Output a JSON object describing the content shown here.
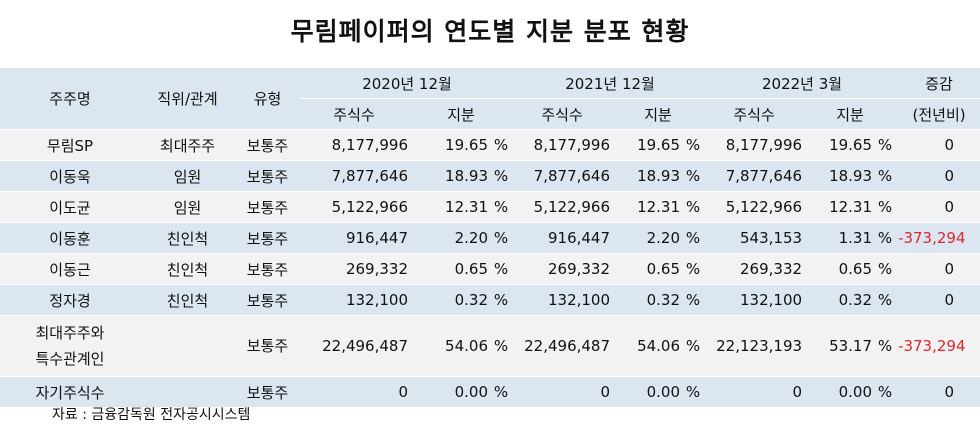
{
  "title": "무림페이퍼의 연도별 지분 분포 현황",
  "header": {
    "holder": "주주명",
    "position": "직위/관계",
    "type": "유형",
    "period1": "2020년 12월",
    "period2": "2021년 12월",
    "period3": "2022년 3월",
    "change_top": "증감",
    "change_bottom": "(전년비)",
    "shares": "주식수",
    "stake": "지분"
  },
  "percent_sign": "%",
  "rows": [
    {
      "name": "무림SP",
      "rel": "최대주주",
      "type": "보통주",
      "s1": "8,177,996",
      "p1": "19.65",
      "s2": "8,177,996",
      "p2": "19.65",
      "s3": "8,177,996",
      "p3": "19.65",
      "chg": "0"
    },
    {
      "name": "이동욱",
      "rel": "임원",
      "type": "보통주",
      "s1": "7,877,646",
      "p1": "18.93",
      "s2": "7,877,646",
      "p2": "18.93",
      "s3": "7,877,646",
      "p3": "18.93",
      "chg": "0"
    },
    {
      "name": "이도균",
      "rel": "임원",
      "type": "보통주",
      "s1": "5,122,966",
      "p1": "12.31",
      "s2": "5,122,966",
      "p2": "12.31",
      "s3": "5,122,966",
      "p3": "12.31",
      "chg": "0"
    },
    {
      "name": "이동훈",
      "rel": "친인척",
      "type": "보통주",
      "s1": "916,447",
      "p1": "2.20",
      "s2": "916,447",
      "p2": "2.20",
      "s3": "543,153",
      "p3": "1.31",
      "chg": "-373,294"
    },
    {
      "name": "이동근",
      "rel": "친인척",
      "type": "보통주",
      "s1": "269,332",
      "p1": "0.65",
      "s2": "269,332",
      "p2": "0.65",
      "s3": "269,332",
      "p3": "0.65",
      "chg": "0"
    },
    {
      "name": "정자경",
      "rel": "친인척",
      "type": "보통주",
      "s1": "132,100",
      "p1": "0.32",
      "s2": "132,100",
      "p2": "0.32",
      "s3": "132,100",
      "p3": "0.32",
      "chg": "0"
    },
    {
      "name_line1": "최대주주와",
      "name_line2": "특수관계인",
      "rel": "",
      "type": "보통주",
      "s1": "22,496,487",
      "p1": "54.06",
      "s2": "22,496,487",
      "p2": "54.06",
      "s3": "22,123,193",
      "p3": "53.17",
      "chg": "-373,294"
    },
    {
      "name": "자기주식수",
      "rel": "",
      "type": "보통주",
      "s1": "0",
      "p1": "0.00",
      "s2": "0",
      "p2": "0.00",
      "s3": "0",
      "p3": "0.00",
      "chg": "0"
    }
  ],
  "source": "자료 : 금융감독원 전자공시시스템",
  "colors": {
    "header_bg": "#dce6f1",
    "stripe_bg": "#f2f2f2",
    "negative": "#e0262c"
  }
}
